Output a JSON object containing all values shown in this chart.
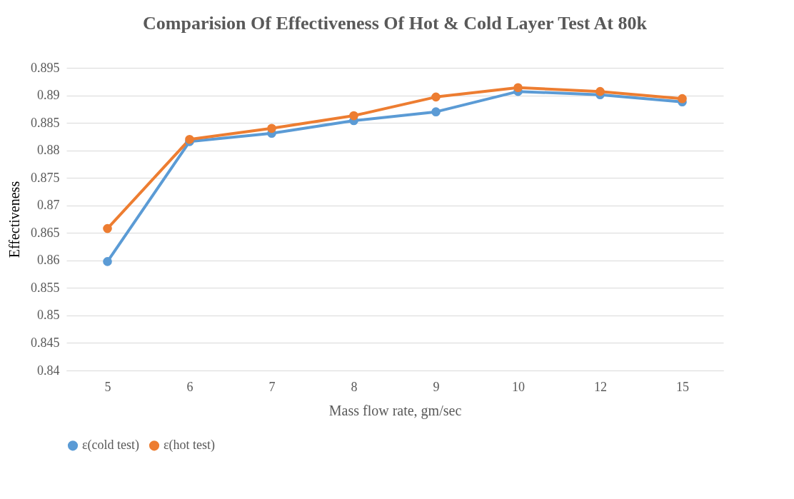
{
  "chart_data": {
    "type": "line",
    "title": "Comparision Of Effectiveness Of Hot & Cold Layer Test At 80k",
    "xlabel": "Mass flow rate, gm/sec",
    "ylabel": "Effectiveness",
    "categories": [
      "5",
      "6",
      "7",
      "8",
      "9",
      "10",
      "12",
      "15"
    ],
    "series": [
      {
        "name": "ε(cold test)",
        "color": "#5b9bd5",
        "values": [
          0.8598,
          0.8816,
          0.8831,
          0.8854,
          0.887,
          0.8907,
          0.8901,
          0.8888
        ]
      },
      {
        "name": "ε(hot test)",
        "color": "#ed7d31",
        "values": [
          0.8658,
          0.882,
          0.884,
          0.8863,
          0.8897,
          0.8914,
          0.8907,
          0.8894
        ]
      }
    ],
    "ylim": [
      0.84,
      0.895
    ],
    "yticks": [
      0.84,
      0.845,
      0.85,
      0.855,
      0.86,
      0.865,
      0.87,
      0.875,
      0.88,
      0.885,
      0.89,
      0.895
    ],
    "grid": "y",
    "legend": "bottom",
    "marker": "circle",
    "line_style": "solid"
  }
}
